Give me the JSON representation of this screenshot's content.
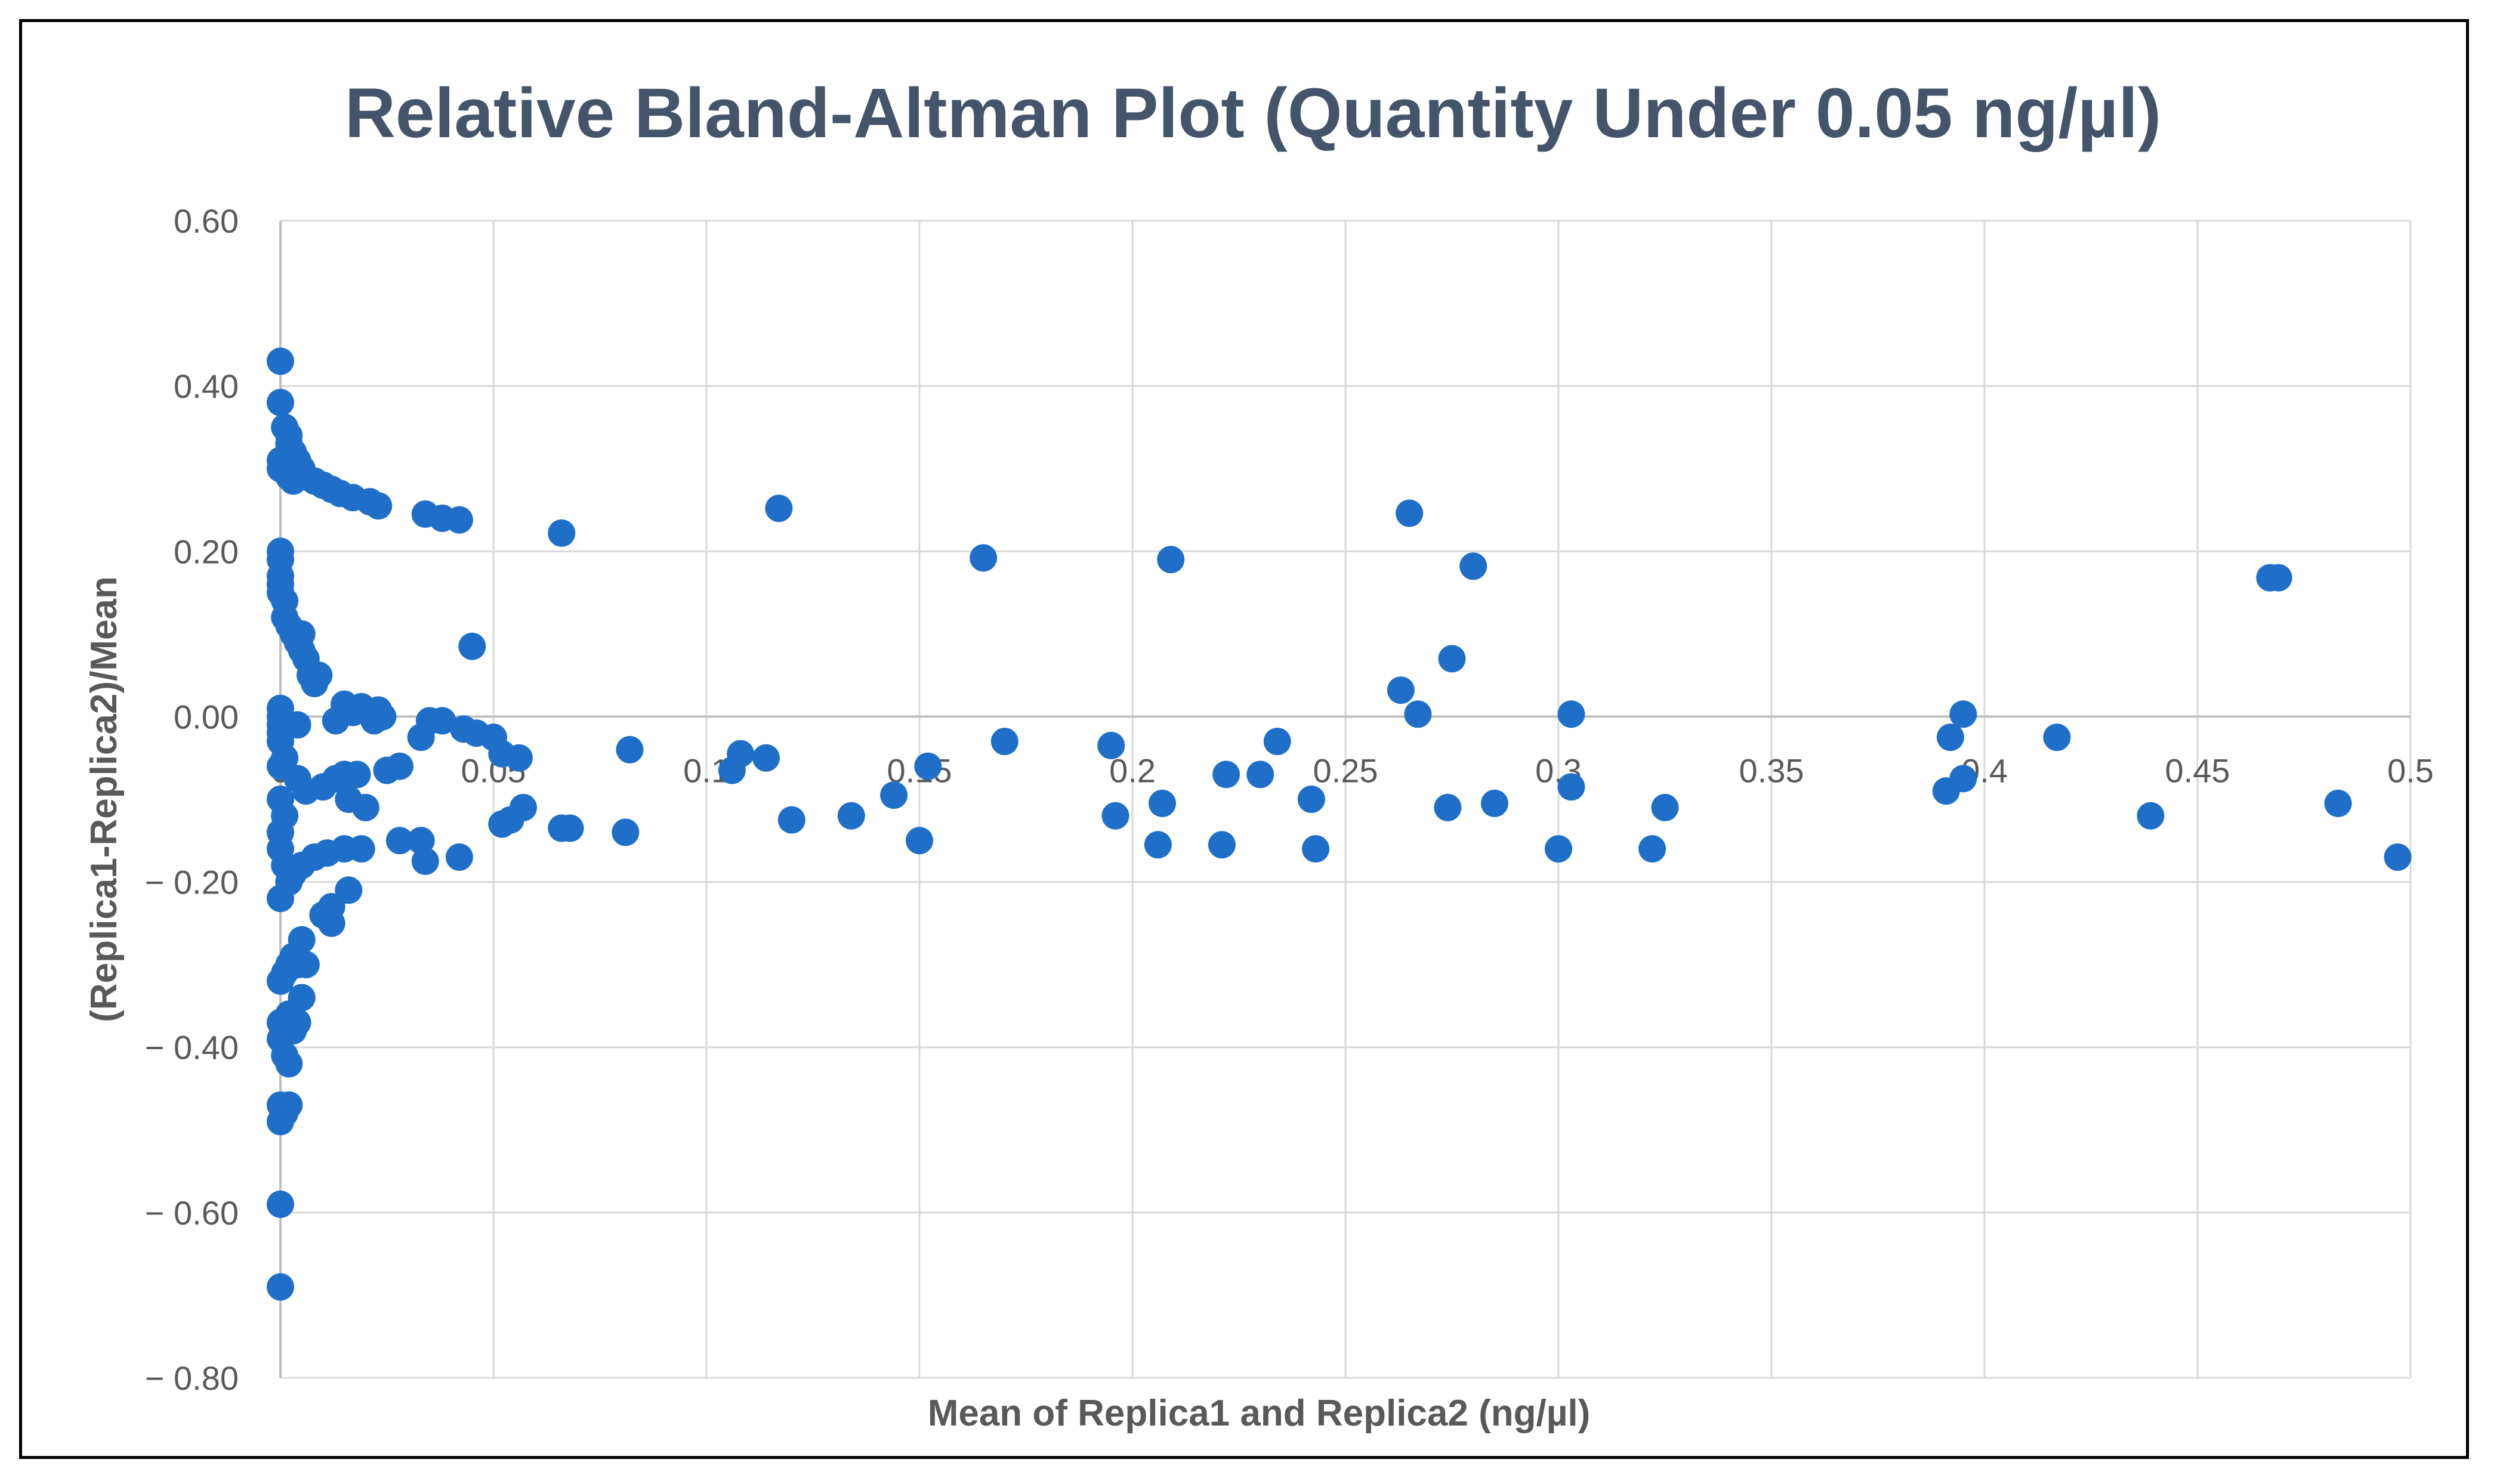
{
  "chart_data": {
    "type": "scatter",
    "title": "Relative Bland-Altman Plot (Quantity Under 0.05 ng/µl)",
    "xlabel": "Mean of Replica1 and Replica2 (ng/µl)",
    "ylabel": "(Replica1-Replica2)/Mean",
    "xlim": [
      0,
      0.5
    ],
    "ylim": [
      -0.8,
      0.6
    ],
    "x_ticks": [
      0,
      0.05,
      0.1,
      0.15,
      0.2,
      0.25,
      0.3,
      0.35,
      0.4,
      0.45,
      0.5
    ],
    "x_tick_labels": [
      "0",
      "0.05",
      "0.1",
      "0.15",
      "0.2",
      "0.25",
      "0.3",
      "0.35",
      "0.4",
      "0.45",
      "0.5"
    ],
    "y_ticks": [
      0.6,
      0.4,
      0.2,
      0.0,
      -0.2,
      -0.4,
      -0.6,
      -0.8
    ],
    "y_tick_labels": [
      "0.60",
      "0.40",
      "0.20",
      "0.00",
      "− 0.20",
      "− 0.40",
      "− 0.60",
      "− 0.80"
    ],
    "grid": true,
    "marker_color": "#1f6fc9",
    "grid_color": "#d9d9d9",
    "axis_color": "#bfbfbf",
    "title_color": "#44546a",
    "text_color": "#595959",
    "points": [
      [
        0.0,
        0.43
      ],
      [
        0.0,
        0.38
      ],
      [
        0.001,
        0.35
      ],
      [
        0.002,
        0.34
      ],
      [
        0.002,
        0.33
      ],
      [
        0.003,
        0.32
      ],
      [
        0.004,
        0.31
      ],
      [
        0.0,
        0.31
      ],
      [
        0.0,
        0.3
      ],
      [
        0.001,
        0.3
      ],
      [
        0.002,
        0.29
      ],
      [
        0.003,
        0.285
      ],
      [
        0.005,
        0.3
      ],
      [
        0.006,
        0.29
      ],
      [
        0.008,
        0.285
      ],
      [
        0.01,
        0.28
      ],
      [
        0.012,
        0.275
      ],
      [
        0.014,
        0.27
      ],
      [
        0.017,
        0.265
      ],
      [
        0.021,
        0.26
      ],
      [
        0.023,
        0.255
      ],
      [
        0.034,
        0.245
      ],
      [
        0.038,
        0.24
      ],
      [
        0.042,
        0.238
      ],
      [
        0.066,
        0.222
      ],
      [
        0.117,
        0.252
      ],
      [
        0.165,
        0.192
      ],
      [
        0.209,
        0.19
      ],
      [
        0.265,
        0.246
      ],
      [
        0.28,
        0.182
      ],
      [
        0.467,
        0.168
      ],
      [
        0.469,
        0.168
      ],
      [
        0.0,
        0.2
      ],
      [
        0.0,
        0.19
      ],
      [
        0.0,
        0.17
      ],
      [
        0.0,
        0.16
      ],
      [
        0.0,
        0.15
      ],
      [
        0.001,
        0.14
      ],
      [
        0.001,
        0.12
      ],
      [
        0.002,
        0.11
      ],
      [
        0.003,
        0.1
      ],
      [
        0.004,
        0.09
      ],
      [
        0.005,
        0.08
      ],
      [
        0.006,
        0.07
      ],
      [
        0.007,
        0.05
      ],
      [
        0.008,
        0.04
      ],
      [
        0.009,
        0.05
      ],
      [
        0.005,
        0.1
      ],
      [
        0.045,
        0.085
      ],
      [
        0.275,
        0.07
      ],
      [
        0.263,
        0.032
      ],
      [
        0.267,
        0.003
      ],
      [
        0.303,
        0.003
      ],
      [
        0.395,
        0.003
      ],
      [
        0.0,
        0.01
      ],
      [
        0.0,
        0.0
      ],
      [
        0.0,
        -0.01
      ],
      [
        0.0,
        -0.02
      ],
      [
        0.0,
        -0.03
      ],
      [
        0.001,
        -0.05
      ],
      [
        0.004,
        -0.01
      ],
      [
        0.013,
        -0.005
      ],
      [
        0.015,
        0.015
      ],
      [
        0.017,
        0.005
      ],
      [
        0.019,
        0.012
      ],
      [
        0.021,
        0.005
      ],
      [
        0.022,
        -0.005
      ],
      [
        0.023,
        0.008
      ],
      [
        0.024,
        0.0
      ],
      [
        0.033,
        -0.025
      ],
      [
        0.035,
        -0.005
      ],
      [
        0.038,
        -0.005
      ],
      [
        0.043,
        -0.015
      ],
      [
        0.046,
        -0.02
      ],
      [
        0.05,
        -0.025
      ],
      [
        0.052,
        -0.045
      ],
      [
        0.056,
        -0.05
      ],
      [
        0.082,
        -0.04
      ],
      [
        0.106,
        -0.065
      ],
      [
        0.108,
        -0.045
      ],
      [
        0.114,
        -0.05
      ],
      [
        0.152,
        -0.06
      ],
      [
        0.17,
        -0.03
      ],
      [
        0.195,
        -0.035
      ],
      [
        0.234,
        -0.03
      ],
      [
        0.392,
        -0.025
      ],
      [
        0.417,
        -0.025
      ],
      [
        0.0,
        -0.06
      ],
      [
        0.004,
        -0.075
      ],
      [
        0.006,
        -0.09
      ],
      [
        0.01,
        -0.085
      ],
      [
        0.013,
        -0.075
      ],
      [
        0.015,
        -0.07
      ],
      [
        0.016,
        -0.1
      ],
      [
        0.018,
        -0.07
      ],
      [
        0.02,
        -0.11
      ],
      [
        0.025,
        -0.065
      ],
      [
        0.028,
        -0.06
      ],
      [
        0.222,
        -0.07
      ],
      [
        0.23,
        -0.07
      ],
      [
        0.242,
        -0.1
      ],
      [
        0.303,
        -0.085
      ],
      [
        0.391,
        -0.09
      ],
      [
        0.395,
        -0.075
      ],
      [
        0.483,
        -0.105
      ],
      [
        0.285,
        -0.105
      ],
      [
        0.274,
        -0.11
      ],
      [
        0.325,
        -0.11
      ],
      [
        0.207,
        -0.105
      ],
      [
        0.196,
        -0.12
      ],
      [
        0.12,
        -0.125
      ],
      [
        0.134,
        -0.12
      ],
      [
        0.144,
        -0.095
      ],
      [
        0.439,
        -0.12
      ],
      [
        0.0,
        -0.1
      ],
      [
        0.001,
        -0.12
      ],
      [
        0.0,
        -0.14
      ],
      [
        0.0,
        -0.16
      ],
      [
        0.001,
        -0.18
      ],
      [
        0.002,
        -0.2
      ],
      [
        0.0,
        -0.22
      ],
      [
        0.003,
        -0.19
      ],
      [
        0.005,
        -0.18
      ],
      [
        0.008,
        -0.17
      ],
      [
        0.011,
        -0.165
      ],
      [
        0.015,
        -0.16
      ],
      [
        0.019,
        -0.16
      ],
      [
        0.028,
        -0.15
      ],
      [
        0.033,
        -0.15
      ],
      [
        0.034,
        -0.175
      ],
      [
        0.042,
        -0.17
      ],
      [
        0.052,
        -0.13
      ],
      [
        0.054,
        -0.125
      ],
      [
        0.057,
        -0.11
      ],
      [
        0.066,
        -0.135
      ],
      [
        0.068,
        -0.135
      ],
      [
        0.081,
        -0.14
      ],
      [
        0.15,
        -0.15
      ],
      [
        0.206,
        -0.155
      ],
      [
        0.221,
        -0.155
      ],
      [
        0.243,
        -0.16
      ],
      [
        0.3,
        -0.16
      ],
      [
        0.322,
        -0.16
      ],
      [
        0.497,
        -0.17
      ],
      [
        0.016,
        -0.21
      ],
      [
        0.01,
        -0.24
      ],
      [
        0.012,
        -0.23
      ],
      [
        0.005,
        -0.27
      ],
      [
        0.003,
        -0.29
      ],
      [
        0.002,
        -0.3
      ],
      [
        0.0,
        -0.32
      ],
      [
        0.001,
        -0.31
      ],
      [
        0.004,
        -0.3
      ],
      [
        0.006,
        -0.3
      ],
      [
        0.005,
        -0.34
      ],
      [
        0.002,
        -0.36
      ],
      [
        0.0,
        -0.37
      ],
      [
        0.0,
        -0.39
      ],
      [
        0.001,
        -0.41
      ],
      [
        0.002,
        -0.42
      ],
      [
        0.003,
        -0.38
      ],
      [
        0.004,
        -0.37
      ],
      [
        0.0,
        -0.47
      ],
      [
        0.001,
        -0.48
      ],
      [
        0.0,
        -0.49
      ],
      [
        0.002,
        -0.47
      ],
      [
        0.0,
        -0.59
      ],
      [
        0.0,
        -0.69
      ],
      [
        0.012,
        -0.25
      ]
    ]
  }
}
